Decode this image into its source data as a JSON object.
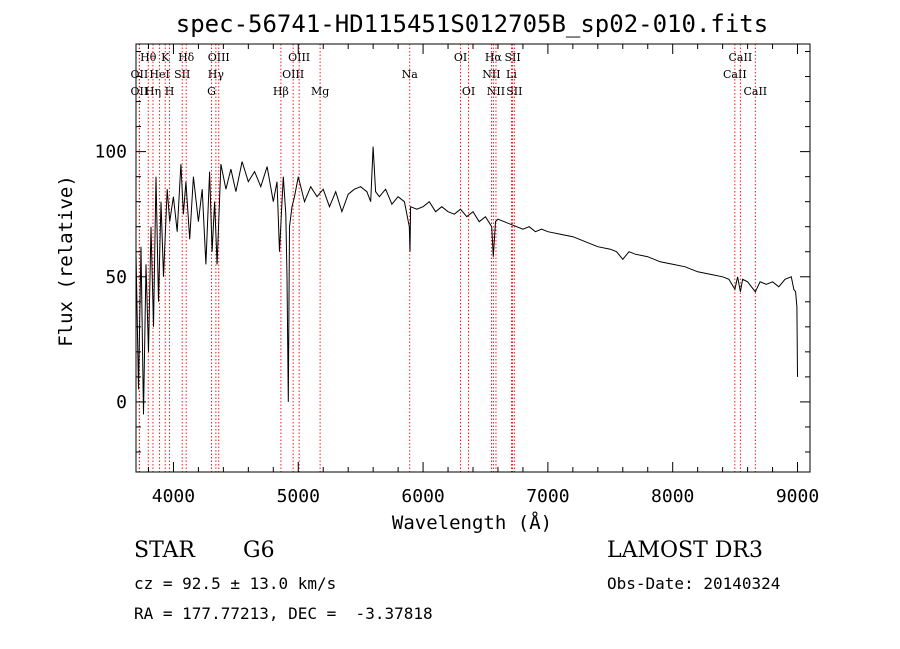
{
  "chart_data": {
    "type": "line",
    "title": "spec-56741-HD115451S012705B_sp02-010.fits",
    "xlabel": "Wavelength (Å)",
    "ylabel": "Flux (relative)",
    "xlim": [
      3700,
      9100
    ],
    "ylim": [
      -28,
      143
    ],
    "xticks": [
      4000,
      5000,
      6000,
      7000,
      8000,
      9000
    ],
    "yticks": [
      0,
      50,
      100
    ],
    "series": [
      {
        "name": "flux",
        "x": [
          3700,
          3720,
          3740,
          3760,
          3780,
          3800,
          3820,
          3840,
          3860,
          3880,
          3900,
          3920,
          3950,
          3970,
          4000,
          4030,
          4060,
          4080,
          4100,
          4130,
          4160,
          4200,
          4230,
          4260,
          4290,
          4310,
          4330,
          4350,
          4380,
          4420,
          4460,
          4500,
          4550,
          4600,
          4650,
          4700,
          4750,
          4800,
          4830,
          4850,
          4870,
          4880,
          4900,
          4910,
          4920,
          4930,
          4950,
          4970,
          5000,
          5050,
          5100,
          5150,
          5200,
          5250,
          5300,
          5350,
          5400,
          5450,
          5500,
          5550,
          5580,
          5600,
          5620,
          5650,
          5700,
          5750,
          5800,
          5850,
          5890,
          5895,
          5900,
          5950,
          6000,
          6050,
          6100,
          6150,
          6200,
          6250,
          6300,
          6350,
          6400,
          6450,
          6500,
          6550,
          6563,
          6580,
          6600,
          6650,
          6700,
          6750,
          6800,
          6850,
          6900,
          6950,
          7000,
          7100,
          7200,
          7300,
          7400,
          7500,
          7550,
          7600,
          7650,
          7700,
          7800,
          7900,
          8000,
          8100,
          8200,
          8300,
          8400,
          8450,
          8498,
          8520,
          8542,
          8560,
          8600,
          8662,
          8700,
          8750,
          8800,
          8850,
          8900,
          8950,
          8970,
          8985,
          8995,
          9000
        ],
        "values": [
          60,
          5,
          62,
          -5,
          55,
          20,
          70,
          30,
          90,
          40,
          80,
          50,
          85,
          72,
          82,
          68,
          95,
          75,
          88,
          65,
          90,
          72,
          85,
          55,
          92,
          60,
          80,
          55,
          95,
          85,
          93,
          84,
          96,
          88,
          92,
          86,
          94,
          80,
          88,
          60,
          80,
          90,
          75,
          50,
          0,
          70,
          78,
          82,
          90,
          80,
          86,
          82,
          85,
          78,
          84,
          76,
          83,
          85,
          86,
          84,
          80,
          102,
          84,
          82,
          85,
          79,
          82,
          80,
          70,
          60,
          78,
          77,
          78,
          80,
          76,
          78,
          76,
          75,
          77,
          74,
          76,
          72,
          74,
          70,
          58,
          72,
          73,
          72,
          71,
          70,
          69,
          70,
          68,
          69,
          68,
          67,
          66,
          64,
          62,
          61,
          60,
          57,
          60,
          59,
          58,
          56,
          55,
          54,
          52,
          51,
          50,
          49,
          45,
          50,
          44,
          49,
          48,
          44,
          48,
          47,
          48,
          46,
          49,
          50,
          45,
          44,
          38,
          10
        ]
      }
    ],
    "annotations": [
      {
        "label": "Hθ",
        "wavelength": 3798,
        "row": 1
      },
      {
        "label": "OII",
        "wavelength": 3727,
        "row": 2
      },
      {
        "label": "OII",
        "wavelength": 3727,
        "row": 3
      },
      {
        "label": "Hη",
        "wavelength": 3836,
        "row": 3
      },
      {
        "label": "HeI",
        "wavelength": 3889,
        "row": 2
      },
      {
        "label": "K",
        "wavelength": 3934,
        "row": 1
      },
      {
        "label": "SII",
        "wavelength": 4070,
        "row": 2
      },
      {
        "label": "H",
        "wavelength": 3969,
        "row": 3
      },
      {
        "label": "Hδ",
        "wavelength": 4102,
        "row": 1
      },
      {
        "label": "OIII",
        "wavelength": 4363,
        "row": 1
      },
      {
        "label": "Hγ",
        "wavelength": 4340,
        "row": 2
      },
      {
        "label": "G",
        "wavelength": 4305,
        "row": 3
      },
      {
        "label": "OIII",
        "wavelength": 5007,
        "row": 1
      },
      {
        "label": "OIII",
        "wavelength": 4959,
        "row": 2
      },
      {
        "label": "Hβ",
        "wavelength": 4861,
        "row": 3
      },
      {
        "label": "Mg",
        "wavelength": 5175,
        "row": 3
      },
      {
        "label": "Na",
        "wavelength": 5893,
        "row": 2
      },
      {
        "label": "OI",
        "wavelength": 6300,
        "row": 1
      },
      {
        "label": "OI",
        "wavelength": 6364,
        "row": 3
      },
      {
        "label": "Hα",
        "wavelength": 6563,
        "row": 1
      },
      {
        "label": "NII",
        "wavelength": 6548,
        "row": 2
      },
      {
        "label": "NII",
        "wavelength": 6584,
        "row": 3
      },
      {
        "label": "SII",
        "wavelength": 6717,
        "row": 1
      },
      {
        "label": "Li",
        "wavelength": 6708,
        "row": 2
      },
      {
        "label": "SII",
        "wavelength": 6731,
        "row": 3
      },
      {
        "label": "CaII",
        "wavelength": 8542,
        "row": 1
      },
      {
        "label": "CaII",
        "wavelength": 8498,
        "row": 2
      },
      {
        "label": "CaII",
        "wavelength": 8662,
        "row": 3
      }
    ]
  },
  "info": {
    "class": "STAR",
    "subclass": "G6",
    "survey": "LAMOST DR3",
    "cz": "cz = 92.5 ± 13.0 km/s",
    "obs_date": "Obs-Date: 20140324",
    "coords": "RA = 177.77213, DEC =  -3.37818"
  },
  "colors": {
    "line": "#000000",
    "marker": "#ff0000",
    "axis": "#000000"
  }
}
